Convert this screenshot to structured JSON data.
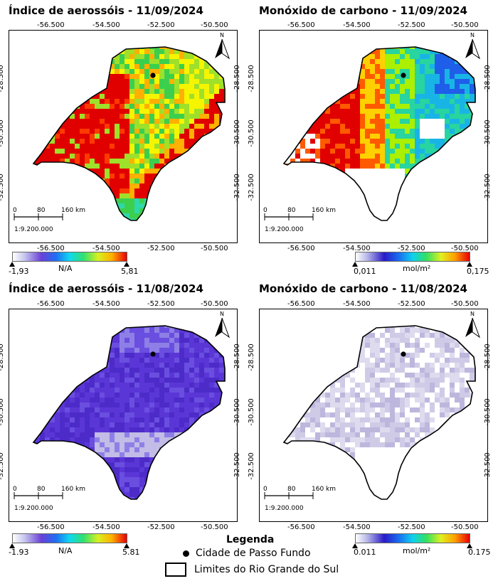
{
  "panels": [
    {
      "title": "Índice de aerossóis - 11/09/2024",
      "style": "ai_sep"
    },
    {
      "title": "Monóxido de carbono - 11/09/2024",
      "style": "co_sep"
    },
    {
      "title": "Índice de aerossóis - 11/08/2024",
      "style": "ai_aug"
    },
    {
      "title": "Monóxido de carbono - 11/08/2024",
      "style": "co_aug"
    }
  ],
  "lon_ticks": [
    "-56.500",
    "-54.500",
    "-52.500",
    "-50.500"
  ],
  "lat_ticks": [
    "-28.500",
    "-30.500",
    "-32.500"
  ],
  "north_label": "N",
  "scale": {
    "labels": [
      "0",
      "80",
      "160 km"
    ],
    "ratio": "1:9.200.000"
  },
  "colorbars": [
    {
      "min": "-1,93",
      "unit": "N/A",
      "max": "5,81",
      "palette": "aerosol"
    },
    {
      "min": "0,011",
      "unit": "mol/m²",
      "max": "0,175",
      "palette": "co"
    },
    {
      "min": "-1.93",
      "unit": "N/A",
      "max": "5.81",
      "palette": "aerosol"
    },
    {
      "min": "0.011",
      "unit": "mol/m²",
      "max": "0.175",
      "palette": "co"
    }
  ],
  "legend": {
    "title": "Legenda",
    "city": "Cidade de Passo Fundo",
    "limits": "Limites do Rio Grande do Sul"
  },
  "colors": {
    "ai_sep": [
      "#e00000",
      "#ff3a00",
      "#ffb000",
      "#f5f500",
      "#9ee02a",
      "#3ccf4e",
      "#2fd8a8"
    ],
    "co_sep": [
      "#e00000",
      "#ff5a00",
      "#ffd000",
      "#aaf000",
      "#28d4a0",
      "#19b4e6",
      "#1f5ee8"
    ],
    "ai_aug": [
      "#5b36d6",
      "#4c2bc9",
      "#6a4ee0",
      "#8e7fe6",
      "#c2bce6"
    ],
    "co_aug": [
      "#ffffff",
      "#dedbef",
      "#cfcbe7",
      "#bdb7dd",
      "#e9e7f5"
    ]
  }
}
